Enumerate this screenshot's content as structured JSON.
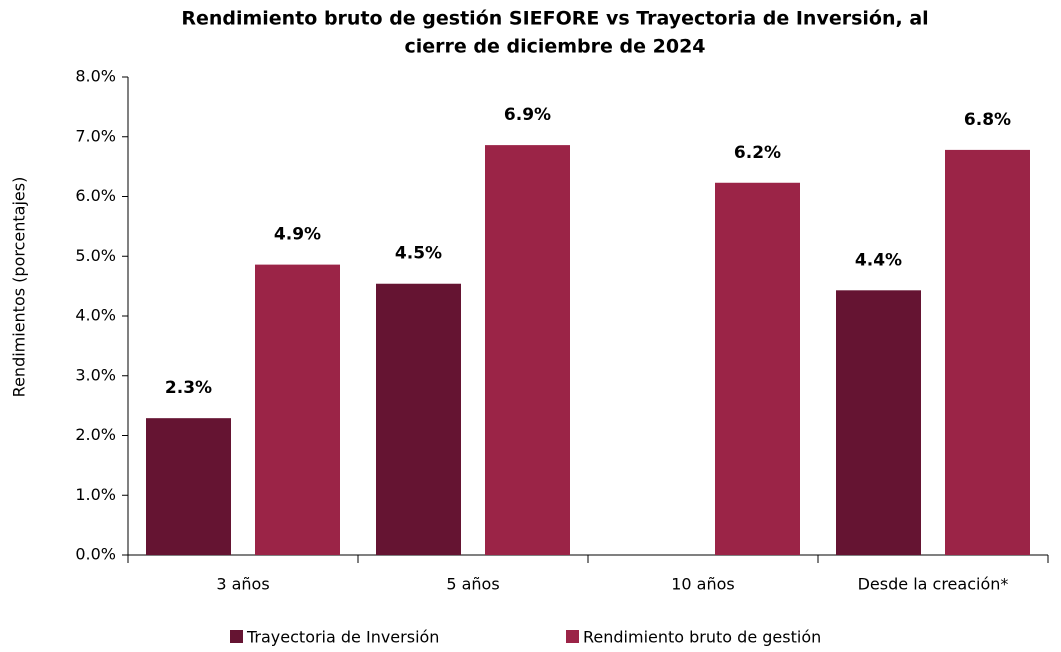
{
  "chart_data": {
    "type": "bar",
    "title": [
      "Rendimiento bruto de gestión SIEFORE vs Trayectoria de Inversión, al",
      "cierre de diciembre de 2024"
    ],
    "y_label": "Rendimientos (porcentajes)",
    "categories": [
      "3 años",
      "5 años",
      "10 años",
      "Desde la creación*"
    ],
    "series": [
      {
        "name": "Trayectoria de Inversión",
        "color": "#651432",
        "values": [
          2.29,
          4.54,
          null,
          4.43
        ],
        "value_labels": [
          "2.3%",
          "4.5%",
          null,
          "4.4%"
        ]
      },
      {
        "name": "Rendimiento bruto de gestión",
        "color": "#9b2447",
        "values": [
          4.86,
          6.86,
          6.23,
          6.78
        ],
        "value_labels": [
          "4.9%",
          "6.9%",
          "6.2%",
          "6.8%"
        ]
      }
    ],
    "ylim": [
      0,
      8
    ],
    "yticks": [
      {
        "value": 0,
        "label": "0.0%"
      },
      {
        "value": 1,
        "label": "1.0%"
      },
      {
        "value": 2,
        "label": "2.0%"
      },
      {
        "value": 3,
        "label": "3.0%"
      },
      {
        "value": 4,
        "label": "4.0%"
      },
      {
        "value": 5,
        "label": "5.0%"
      },
      {
        "value": 6,
        "label": "6.0%"
      },
      {
        "value": 7,
        "label": "7.0%"
      },
      {
        "value": 8,
        "label": "8.0%"
      }
    ],
    "grid": false,
    "legend": "bottom"
  }
}
